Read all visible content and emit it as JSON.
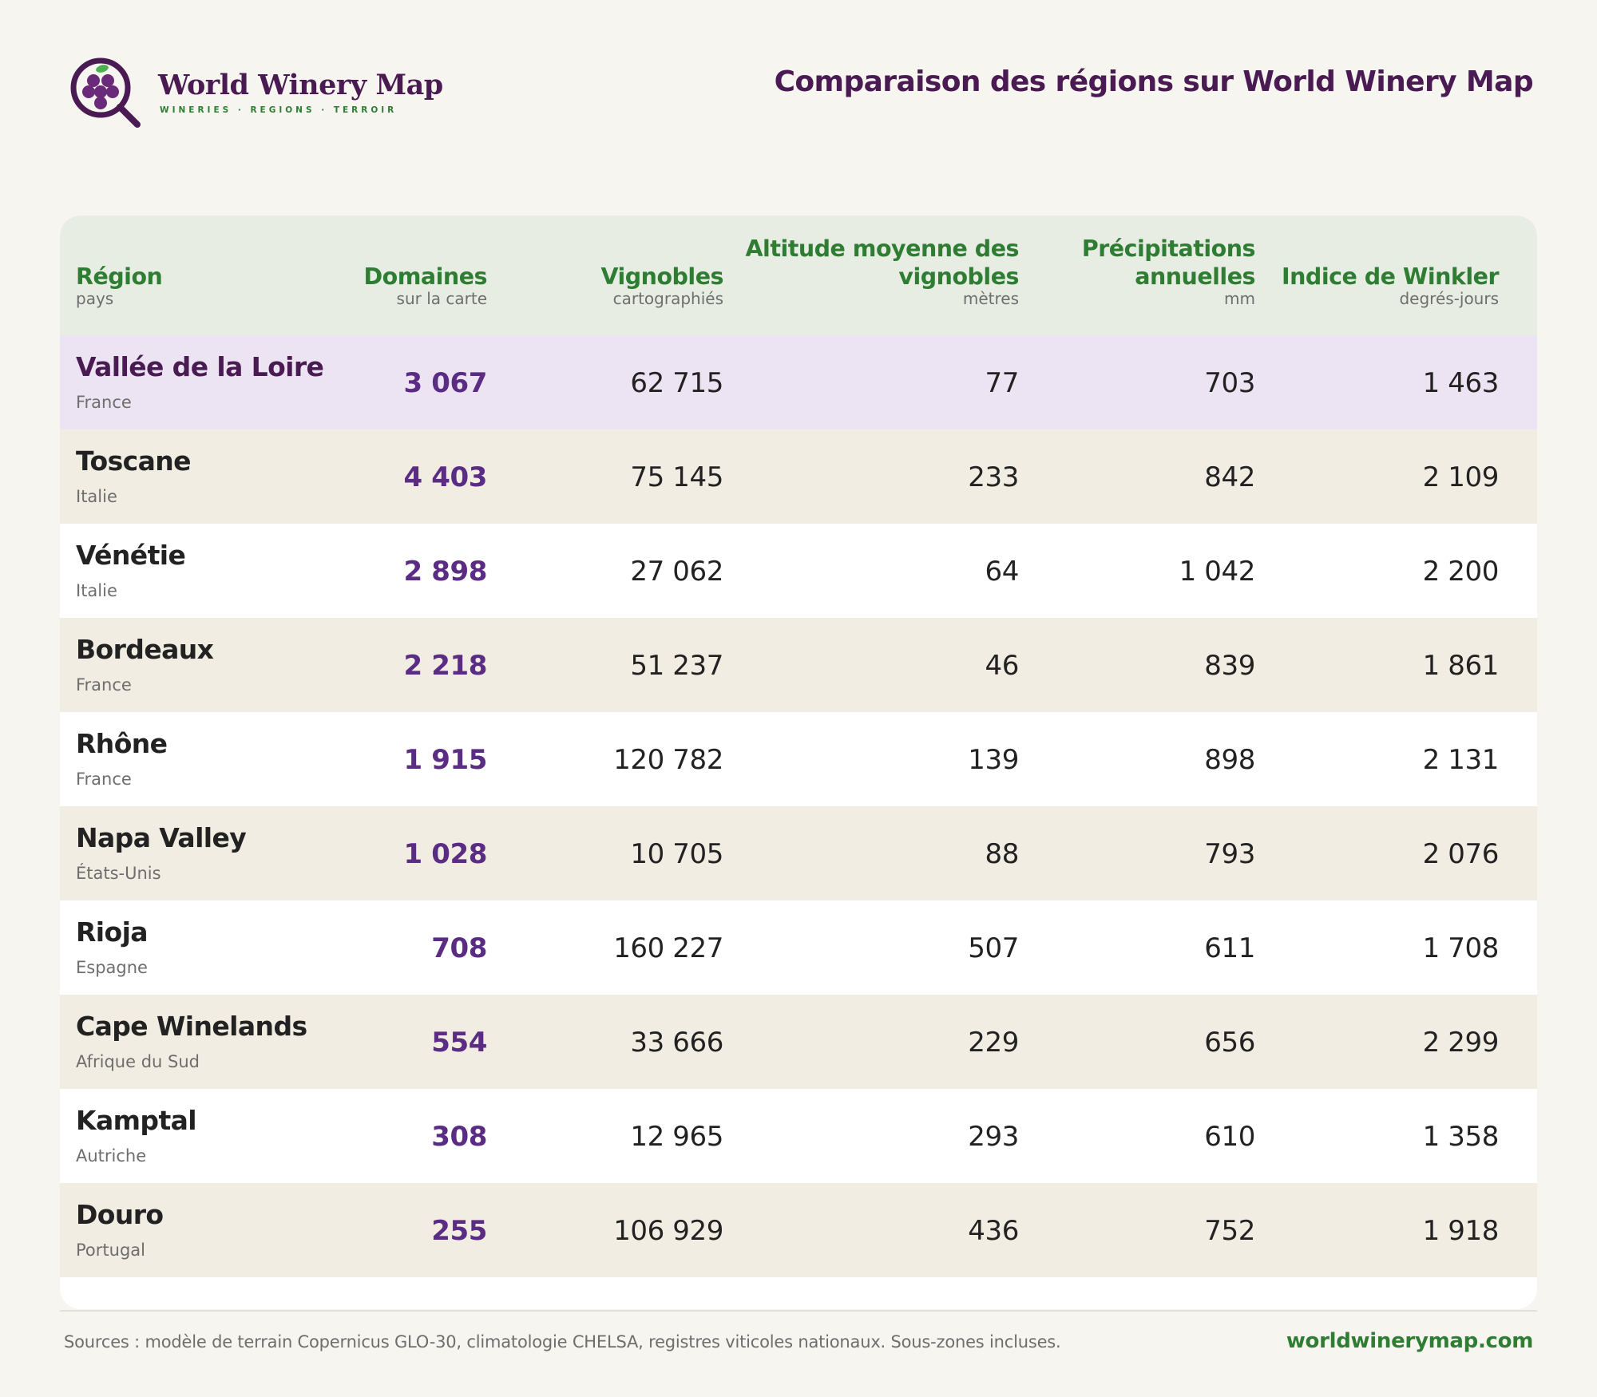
{
  "brand": {
    "name": "World Winery Map",
    "tagline": "WINERIES · REGIONS · TERROIR",
    "colors": {
      "purple": "#4a1a52",
      "grape": "#6a2a7a",
      "green": "#2e7d32",
      "leaf": "#4caf50"
    },
    "logo_icon": "magnifier-grapes-icon"
  },
  "page_title": "Comparaison des régions sur World Winery Map",
  "table": {
    "columns": [
      {
        "label": "Région",
        "sub": "pays"
      },
      {
        "label": "Domaines",
        "sub": "sur la carte"
      },
      {
        "label": "Vignobles",
        "sub": "cartographiés"
      },
      {
        "label": "Altitude moyenne des vignobles",
        "sub": "mètres"
      },
      {
        "label": "Précipitations annuelles",
        "sub": "mm"
      },
      {
        "label": "Indice de Winkler",
        "sub": "degrés-jours"
      }
    ],
    "rows": [
      {
        "region": "Vallée de la Loire",
        "country": "France",
        "estates": "3 067",
        "vineyards": "62 715",
        "altitude": "77",
        "precip": "703",
        "winkler": "1 463"
      },
      {
        "region": "Toscane",
        "country": "Italie",
        "estates": "4 403",
        "vineyards": "75 145",
        "altitude": "233",
        "precip": "842",
        "winkler": "2 109"
      },
      {
        "region": "Vénétie",
        "country": "Italie",
        "estates": "2 898",
        "vineyards": "27 062",
        "altitude": "64",
        "precip": "1 042",
        "winkler": "2 200"
      },
      {
        "region": "Bordeaux",
        "country": "France",
        "estates": "2 218",
        "vineyards": "51 237",
        "altitude": "46",
        "precip": "839",
        "winkler": "1 861"
      },
      {
        "region": "Rhône",
        "country": "France",
        "estates": "1 915",
        "vineyards": "120 782",
        "altitude": "139",
        "precip": "898",
        "winkler": "2 131"
      },
      {
        "region": "Napa Valley",
        "country": "États-Unis",
        "estates": "1 028",
        "vineyards": "10 705",
        "altitude": "88",
        "precip": "793",
        "winkler": "2 076"
      },
      {
        "region": "Rioja",
        "country": "Espagne",
        "estates": "708",
        "vineyards": "160 227",
        "altitude": "507",
        "precip": "611",
        "winkler": "1 708"
      },
      {
        "region": "Cape Winelands",
        "country": "Afrique du Sud",
        "estates": "554",
        "vineyards": "33 666",
        "altitude": "229",
        "precip": "656",
        "winkler": "2 299"
      },
      {
        "region": "Kamptal",
        "country": "Autriche",
        "estates": "308",
        "vineyards": "12 965",
        "altitude": "293",
        "precip": "610",
        "winkler": "1 358"
      },
      {
        "region": "Douro",
        "country": "Portugal",
        "estates": "255",
        "vineyards": "106 929",
        "altitude": "436",
        "precip": "752",
        "winkler": "1 918"
      }
    ]
  },
  "footer": {
    "sources": "Sources : modèle de terrain Copernicus GLO-30, climatologie CHELSA, registres viticoles nationaux. Sous-zones incluses.",
    "url": "worldwinerymap.com"
  }
}
